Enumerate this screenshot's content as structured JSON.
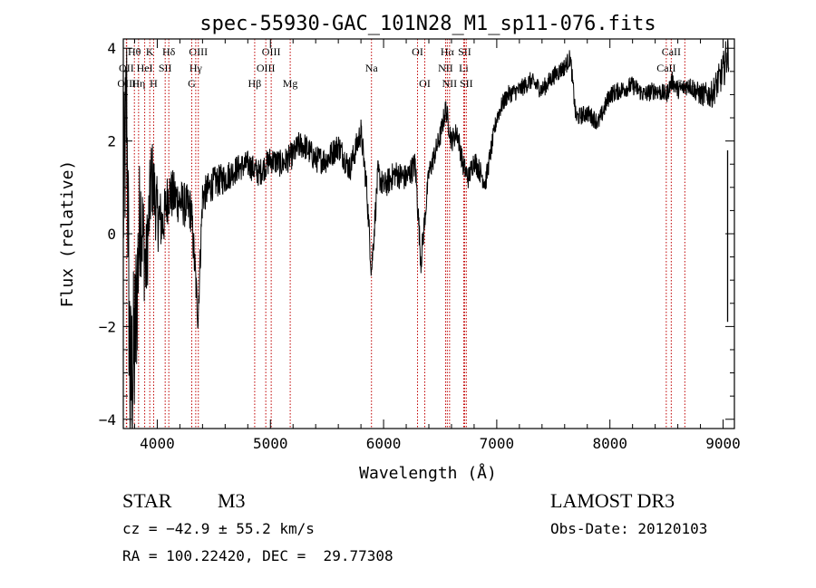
{
  "chart_data": {
    "type": "line",
    "title": "spec-55930-GAC_101N28_M1_sp11-076.fits",
    "xlabel": "Wavelength (Å)",
    "ylabel": "Flux (relative)",
    "xlim": [
      3700,
      9100
    ],
    "ylim": [
      -4.2,
      4.2
    ],
    "xticks": [
      4000,
      5000,
      6000,
      7000,
      8000,
      9000
    ],
    "yticks": [
      -4,
      -2,
      0,
      2,
      4
    ],
    "lines": [
      {
        "label": "Hθ",
        "wl": 3798,
        "row": 0
      },
      {
        "label": "OII",
        "wl": 3727,
        "row": 1
      },
      {
        "label": "OIII",
        "wl": 3730,
        "row": 2
      },
      {
        "label": "Hη",
        "wl": 3835,
        "row": 2
      },
      {
        "label": "K",
        "wl": 3934,
        "row": 0
      },
      {
        "label": "HeI",
        "wl": 3889,
        "row": 1
      },
      {
        "label": "H",
        "wl": 3968,
        "row": 2
      },
      {
        "label": "SII",
        "wl": 4070,
        "row": 1
      },
      {
        "label": "Hδ",
        "wl": 4102,
        "row": 0
      },
      {
        "label": "OIII",
        "wl": 4363,
        "row": 0
      },
      {
        "label": "Hγ",
        "wl": 4340,
        "row": 1
      },
      {
        "label": "G",
        "wl": 4305,
        "row": 2
      },
      {
        "label": "Hβ",
        "wl": 4861,
        "row": 2
      },
      {
        "label": "OIII",
        "wl": 5007,
        "row": 0
      },
      {
        "label": "OIII",
        "wl": 4959,
        "row": 1
      },
      {
        "label": "Mg",
        "wl": 5175,
        "row": 2
      },
      {
        "label": "Na",
        "wl": 5893,
        "row": 1
      },
      {
        "label": "OI",
        "wl": 6300,
        "row": 0
      },
      {
        "label": "OI",
        "wl": 6364,
        "row": 2
      },
      {
        "label": "Hα",
        "wl": 6563,
        "row": 0
      },
      {
        "label": "SII",
        "wl": 6716,
        "row": 0
      },
      {
        "label": "NII",
        "wl": 6548,
        "row": 1
      },
      {
        "label": "Li",
        "wl": 6708,
        "row": 1
      },
      {
        "label": "NII",
        "wl": 6583,
        "row": 2
      },
      {
        "label": "SII",
        "wl": 6731,
        "row": 2
      },
      {
        "label": "CaII",
        "wl": 8542,
        "row": 0
      },
      {
        "label": "CaII",
        "wl": 8498,
        "row": 1
      },
      {
        "label": "CaII",
        "wl": 8662,
        "row": 2
      }
    ],
    "spectrum_anchors": {
      "wavelength": [
        3700,
        3730,
        3760,
        3800,
        3850,
        3900,
        3950,
        4000,
        4050,
        4100,
        4200,
        4300,
        4360,
        4400,
        4500,
        4600,
        4700,
        4800,
        4900,
        5000,
        5100,
        5200,
        5250,
        5300,
        5400,
        5500,
        5600,
        5700,
        5800,
        5850,
        5893,
        5950,
        6000,
        6100,
        6200,
        6280,
        6330,
        6400,
        6500,
        6550,
        6600,
        6650,
        6700,
        6750,
        6800,
        6900,
        7000,
        7050,
        7100,
        7200,
        7300,
        7400,
        7500,
        7600,
        7650,
        7700,
        7800,
        7900,
        8000,
        8100,
        8200,
        8300,
        8400,
        8500,
        8550,
        8600,
        8700,
        8800,
        8900,
        9000,
        9050
      ],
      "flux": [
        0.5,
        2.8,
        -3.5,
        -2.5,
        0.6,
        -0.8,
        1.3,
        0.4,
        0.2,
        0.9,
        0.7,
        0.5,
        -1.8,
        0.8,
        1.1,
        1.2,
        1.4,
        1.5,
        1.3,
        1.6,
        1.5,
        1.7,
        1.9,
        1.9,
        1.6,
        1.6,
        1.9,
        1.4,
        2.2,
        1.0,
        -0.8,
        1.3,
        1.0,
        1.3,
        1.2,
        1.5,
        -0.6,
        1.3,
        2.1,
        2.7,
        2.0,
        2.2,
        1.5,
        1.2,
        1.6,
        1.1,
        2.5,
        2.8,
        3.0,
        3.1,
        3.3,
        3.1,
        3.4,
        3.6,
        3.8,
        2.5,
        2.6,
        2.4,
        3.0,
        3.1,
        3.2,
        3.0,
        3.1,
        3.0,
        3.3,
        3.1,
        3.2,
        3.0,
        3.0,
        3.5,
        4.0
      ],
      "noise": [
        2.0,
        2.0,
        2.2,
        2.0,
        1.4,
        1.0,
        0.9,
        0.8,
        0.6,
        0.6,
        0.5,
        0.5,
        0.4,
        0.4,
        0.35,
        0.35,
        0.3,
        0.3,
        0.3,
        0.3,
        0.3,
        0.3,
        0.3,
        0.3,
        0.3,
        0.3,
        0.3,
        0.3,
        0.3,
        0.3,
        0.3,
        0.3,
        0.3,
        0.3,
        0.3,
        0.3,
        0.3,
        0.25,
        0.25,
        0.25,
        0.25,
        0.25,
        0.25,
        0.25,
        0.25,
        0.25,
        0.2,
        0.2,
        0.2,
        0.2,
        0.2,
        0.2,
        0.2,
        0.2,
        0.2,
        0.2,
        0.2,
        0.2,
        0.2,
        0.2,
        0.2,
        0.2,
        0.2,
        0.2,
        0.2,
        0.2,
        0.2,
        0.25,
        0.3,
        0.4,
        0.5
      ]
    }
  },
  "info": {
    "object_type": "STAR",
    "subclass": "M3",
    "survey": "LAMOST DR3",
    "cz": "cz = −42.9 ± 55.2 km/s",
    "obs_date": "Obs-Date: 20120103",
    "radec": "RA = 100.22420, DEC =  29.77308"
  },
  "colors": {
    "axis": "#000000",
    "spectrum": "#000000",
    "line_marker": "#c00000"
  }
}
